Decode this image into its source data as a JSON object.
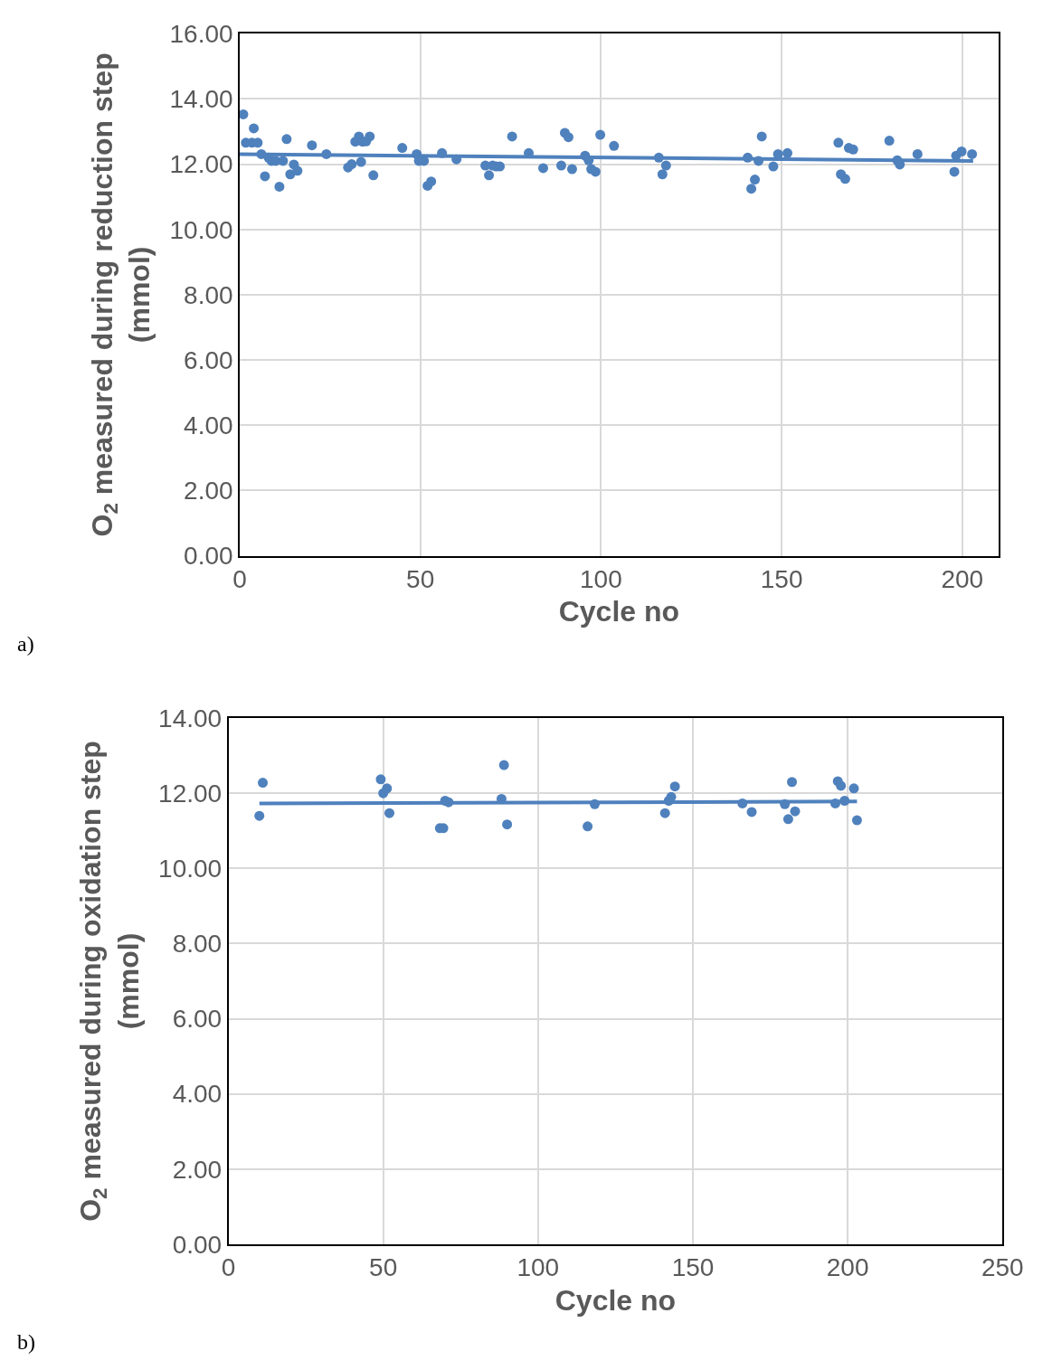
{
  "chart_data": [
    {
      "type": "scatter",
      "xlabel": "Cycle no",
      "ylabel": "O$_{2}$ measured during reduction step (mmol)",
      "annotations": [
        "a)"
      ],
      "xlim": [
        0,
        210
      ],
      "xticks": [
        0,
        50,
        100,
        150,
        200
      ],
      "ylim": [
        0,
        16
      ],
      "yticks": [
        {
          "value": 0,
          "label": "0.00"
        },
        {
          "value": 2,
          "label": "2.00"
        },
        {
          "value": 4,
          "label": "4.00"
        },
        {
          "value": 6,
          "label": "6.00"
        },
        {
          "value": 8,
          "label": "8.00"
        },
        {
          "value": 10,
          "label": "10.00"
        },
        {
          "value": 12,
          "label": "12.00"
        },
        {
          "value": 14,
          "label": "14.00"
        },
        {
          "value": 16,
          "label": "16.00"
        }
      ],
      "grid": true,
      "marker": "circle",
      "series": [
        {
          "color": "#4f81bd",
          "x": [
            1,
            1.7,
            3.4,
            5,
            3.9,
            6,
            7,
            8,
            8.8,
            10,
            11,
            12,
            13,
            14,
            15,
            16,
            20,
            24,
            30,
            31,
            32,
            33,
            34,
            35,
            36,
            33.6,
            37,
            45,
            49,
            49.6,
            51,
            52,
            53,
            56,
            60,
            68,
            69,
            70,
            71,
            72,
            75.4,
            80,
            84,
            89,
            90,
            91,
            92,
            95.6,
            96.6,
            97.3,
            98.5,
            99.8,
            103.6,
            116,
            117,
            118,
            140.6,
            141.6,
            142.6,
            143.6,
            144.5,
            147.7,
            149,
            151.6,
            165.7,
            166.4,
            167.6,
            168.6,
            169.8,
            179.8,
            182,
            182.7,
            187.6,
            197.8,
            198.3,
            199.8,
            202.7
          ],
          "values": [
            13.53,
            12.66,
            12.66,
            12.66,
            13.1,
            12.31,
            11.63,
            12.2,
            12.1,
            12.1,
            11.31,
            12.1,
            12.77,
            11.69,
            11.99,
            11.8,
            12.58,
            12.31,
            11.9,
            12.0,
            12.69,
            12.85,
            12.69,
            12.7,
            12.85,
            12.07,
            11.66,
            12.5,
            12.31,
            12.1,
            12.1,
            11.34,
            11.47,
            12.34,
            12.15,
            11.96,
            11.66,
            11.96,
            11.93,
            11.93,
            12.85,
            12.34,
            11.88,
            11.96,
            12.96,
            12.83,
            11.85,
            12.26,
            12.12,
            11.85,
            11.77,
            12.9,
            12.56,
            12.2,
            11.69,
            11.96,
            12.2,
            11.25,
            11.53,
            12.1,
            12.85,
            11.93,
            12.31,
            12.34,
            12.66,
            11.69,
            11.55,
            12.5,
            12.45,
            12.72,
            12.12,
            11.99,
            12.31,
            11.77,
            12.26,
            12.39,
            12.31
          ]
        },
        {
          "type": "line",
          "color": "#4f81bd",
          "marker": "none",
          "x": [
            0,
            203
          ],
          "values": [
            12.31,
            12.1
          ]
        }
      ]
    },
    {
      "type": "scatter",
      "xlabel": "Cycle no",
      "ylabel": "O$_{2}$ measured during oxidation step (mmol)",
      "annotations": [
        "b)"
      ],
      "xlim": [
        0,
        250
      ],
      "xticks": [
        0,
        50,
        100,
        150,
        200,
        250
      ],
      "ylim": [
        0,
        14
      ],
      "yticks": [
        {
          "value": 0,
          "label": "0.00"
        },
        {
          "value": 2,
          "label": "2.00"
        },
        {
          "value": 4,
          "label": "4.00"
        },
        {
          "value": 6,
          "label": "6.00"
        },
        {
          "value": 8,
          "label": "8.00"
        },
        {
          "value": 10,
          "label": "10.00"
        },
        {
          "value": 12,
          "label": "12.00"
        },
        {
          "value": 14,
          "label": "14.00"
        }
      ],
      "grid": true,
      "marker": "circle",
      "series": [
        {
          "color": "#4f81bd",
          "x": [
            10,
            11.1,
            49.2,
            50,
            51.2,
            52,
            68.3,
            69.4,
            70,
            71.1,
            88.2,
            89,
            90,
            116,
            118.3,
            141,
            142.2,
            143,
            144.2,
            166,
            169,
            179.7,
            180.8,
            182,
            183,
            196,
            196.8,
            197.8,
            199,
            202,
            203
          ],
          "values": [
            11.4,
            12.28,
            12.37,
            12.0,
            12.13,
            11.47,
            11.07,
            11.07,
            11.8,
            11.76,
            11.85,
            12.75,
            11.17,
            11.12,
            11.71,
            11.47,
            11.8,
            11.9,
            12.18,
            11.73,
            11.5,
            11.71,
            11.31,
            12.3,
            11.52,
            11.73,
            12.32,
            12.2,
            11.8,
            12.13,
            11.28
          ]
        },
        {
          "type": "line",
          "color": "#4f81bd",
          "marker": "none",
          "x": [
            10,
            203
          ],
          "values": [
            11.73,
            11.78
          ]
        }
      ]
    }
  ]
}
